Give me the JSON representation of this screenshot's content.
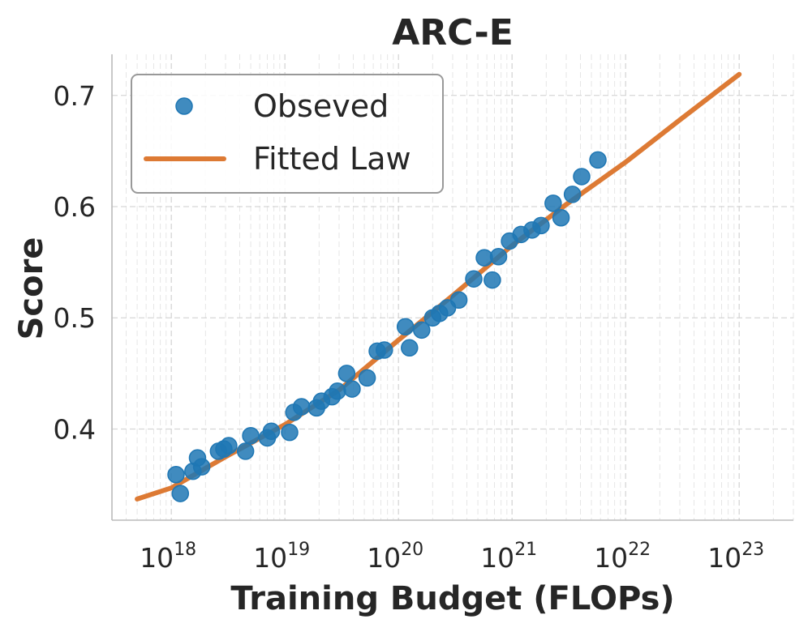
{
  "chart_data": {
    "type": "scatter",
    "title": "ARC-E",
    "xlabel": "Training Budget (FLOPs)",
    "ylabel": "Score",
    "xscale": "log",
    "xlim": [
      3e+17,
      3e+23
    ],
    "ylim": [
      0.318,
      0.737
    ],
    "grid": true,
    "legend_position": "top-left",
    "x_ticks": [
      {
        "base": "10",
        "exp": "18",
        "value": 1e+18
      },
      {
        "base": "10",
        "exp": "19",
        "value": 1e+19
      },
      {
        "base": "10",
        "exp": "20",
        "value": 1e+20
      },
      {
        "base": "10",
        "exp": "21",
        "value": 1e+21
      },
      {
        "base": "10",
        "exp": "22",
        "value": 1e+22
      },
      {
        "base": "10",
        "exp": "23",
        "value": 1e+23
      }
    ],
    "y_ticks": [
      {
        "label": "0.4",
        "value": 0.4
      },
      {
        "label": "0.5",
        "value": 0.5
      },
      {
        "label": "0.6",
        "value": 0.6
      },
      {
        "label": "0.7",
        "value": 0.7
      }
    ],
    "series": [
      {
        "name": "Obseved",
        "kind": "scatter",
        "color": "#1f77b4",
        "points": [
          [
            1.1e+18,
            0.359
          ],
          [
            1.2e+18,
            0.342
          ],
          [
            1.55e+18,
            0.362
          ],
          [
            1.7e+18,
            0.374
          ],
          [
            1.85e+18,
            0.366
          ],
          [
            2.6e+18,
            0.38
          ],
          [
            2.9e+18,
            0.382
          ],
          [
            3.2e+18,
            0.385
          ],
          [
            4.5e+18,
            0.38
          ],
          [
            5e+18,
            0.394
          ],
          [
            7e+18,
            0.392
          ],
          [
            7.6e+18,
            0.398
          ],
          [
            1.1e+19,
            0.397
          ],
          [
            1.2e+19,
            0.415
          ],
          [
            1.4e+19,
            0.42
          ],
          [
            1.9e+19,
            0.419
          ],
          [
            2.1e+19,
            0.425
          ],
          [
            2.6e+19,
            0.429
          ],
          [
            2.9e+19,
            0.434
          ],
          [
            3.5e+19,
            0.45
          ],
          [
            3.9e+19,
            0.436
          ],
          [
            5.3e+19,
            0.446
          ],
          [
            6.5e+19,
            0.47
          ],
          [
            7.5e+19,
            0.471
          ],
          [
            1.15e+20,
            0.492
          ],
          [
            1.25e+20,
            0.473
          ],
          [
            1.6e+20,
            0.489
          ],
          [
            2e+20,
            0.5
          ],
          [
            2.3e+20,
            0.504
          ],
          [
            2.7e+20,
            0.509
          ],
          [
            3.4e+20,
            0.516
          ],
          [
            4.6e+20,
            0.535
          ],
          [
            5.7e+20,
            0.554
          ],
          [
            6.7e+20,
            0.534
          ],
          [
            7.6e+20,
            0.555
          ],
          [
            9.5e+20,
            0.569
          ],
          [
            1.2e+21,
            0.575
          ],
          [
            1.5e+21,
            0.579
          ],
          [
            1.8e+21,
            0.583
          ],
          [
            2.3e+21,
            0.603
          ],
          [
            2.7e+21,
            0.59
          ],
          [
            3.4e+21,
            0.611
          ],
          [
            4.1e+21,
            0.627
          ],
          [
            5.7e+21,
            0.642
          ]
        ]
      },
      {
        "name": "Fitted Law",
        "kind": "line",
        "color": "#dd7a34",
        "points": [
          [
            5e+17,
            0.337
          ],
          [
            1e+18,
            0.347
          ],
          [
            3e+18,
            0.375
          ],
          [
            1e+19,
            0.404
          ],
          [
            3e+19,
            0.435
          ],
          [
            1e+20,
            0.48
          ],
          [
            3e+20,
            0.52
          ],
          [
            1e+21,
            0.565
          ],
          [
            3e+21,
            0.602
          ],
          [
            1e+22,
            0.64
          ],
          [
            3e+22,
            0.678
          ],
          [
            1e+23,
            0.719
          ]
        ]
      }
    ]
  }
}
